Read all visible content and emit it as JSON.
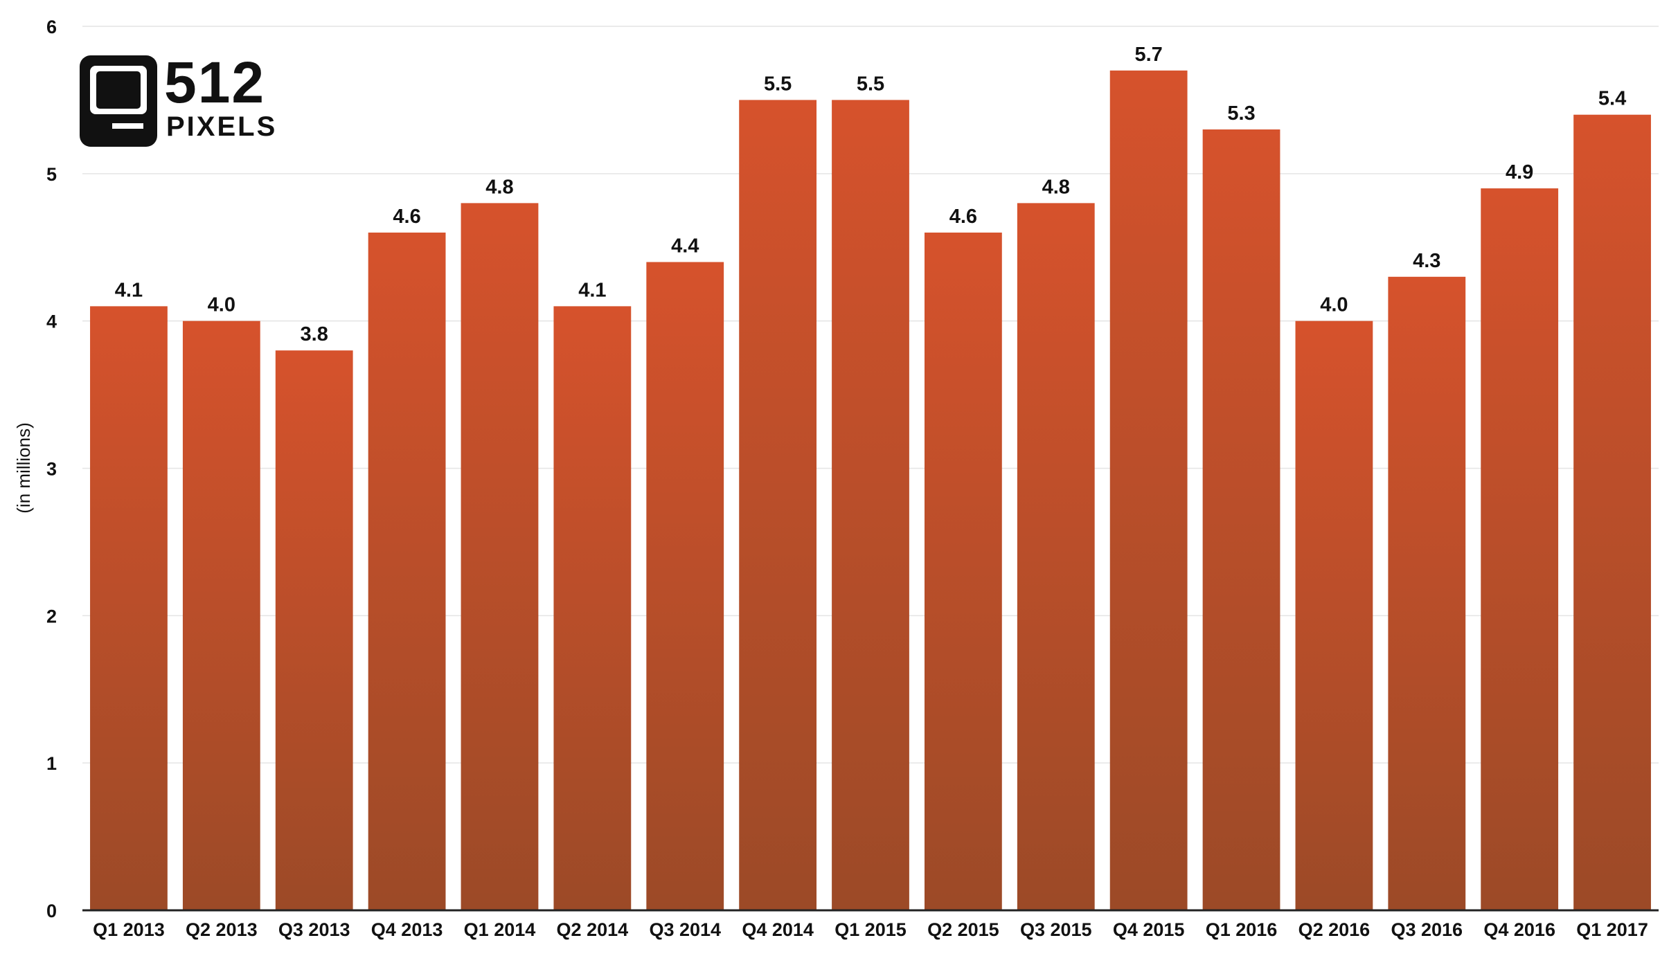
{
  "chart_data": {
    "type": "bar",
    "title": "",
    "xlabel": "",
    "ylabel": "(in millions)",
    "ylim": [
      0,
      6
    ],
    "yticks": [
      0,
      1,
      2,
      3,
      4,
      5,
      6
    ],
    "grid": true,
    "legend": "none",
    "categories": [
      "Q1 2013",
      "Q2 2013",
      "Q3 2013",
      "Q4 2013",
      "Q1 2014",
      "Q2 2014",
      "Q3 2014",
      "Q4 2014",
      "Q1 2015",
      "Q2 2015",
      "Q3 2015",
      "Q4 2015",
      "Q1 2016",
      "Q2 2016",
      "Q3 2016",
      "Q4 2016",
      "Q1 2017"
    ],
    "values": [
      4.1,
      4.0,
      3.8,
      4.6,
      4.8,
      4.1,
      4.4,
      5.5,
      5.5,
      4.6,
      4.8,
      5.7,
      5.3,
      4.0,
      4.3,
      4.9,
      5.4
    ],
    "value_labels": [
      "4.1",
      "4.0",
      "3.8",
      "4.6",
      "4.8",
      "4.1",
      "4.4",
      "5.5",
      "5.5",
      "4.6",
      "4.8",
      "5.7",
      "5.3",
      "4.0",
      "4.3",
      "4.9",
      "5.4"
    ],
    "colors": {
      "bar_top": "#d6522c",
      "bar_bottom": "#9c4a27",
      "grid": "#e4e4e4",
      "axis": "#222222"
    }
  },
  "logo": {
    "number": "512",
    "word": "PIXELS",
    "icon": "computer-monitor-icon"
  }
}
